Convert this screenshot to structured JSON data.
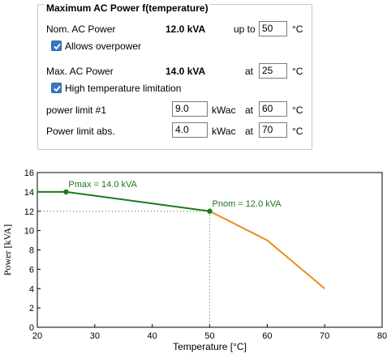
{
  "group": {
    "title": "Maximum AC Power f(temperature)",
    "nom": {
      "label": "Nom. AC Power",
      "value": "12.0 kVA",
      "qualifier": "up to",
      "temp": "50",
      "unit": "°C"
    },
    "overpower": {
      "label": "Allows overpower",
      "checked": true
    },
    "max": {
      "label": "Max. AC Power",
      "value": "14.0 kVA",
      "qualifier": "at",
      "temp": "25",
      "unit": "°C"
    },
    "hightemp": {
      "label": "High temperature limitation",
      "checked": true
    },
    "limit1": {
      "label": "power limit #1",
      "value": "9.0",
      "unit": "kWac",
      "qualifier": "at",
      "temp": "60",
      "temp_unit": "°C"
    },
    "limitabs": {
      "label": "Power limit abs.",
      "value": "4.0",
      "unit": "kWac",
      "qualifier": "at",
      "temp": "70",
      "temp_unit": "°C"
    }
  },
  "chart_data": {
    "type": "line",
    "xlabel": "Temperature [°C]",
    "ylabel": "Power [kVA]",
    "xlim": [
      20,
      80
    ],
    "ylim": [
      0,
      16
    ],
    "x_ticks": [
      "20",
      "30",
      "40",
      "50",
      "60",
      "70",
      "80"
    ],
    "y_ticks": [
      "0",
      "2",
      "4",
      "6",
      "8",
      "10",
      "12",
      "14",
      "16"
    ],
    "grid": false,
    "series": [
      {
        "color": "#1a7a1a",
        "points": [
          [
            20,
            14.0
          ],
          [
            25,
            14.0
          ],
          [
            50,
            12.0
          ]
        ]
      },
      {
        "color": "#f0891e",
        "points": [
          [
            50,
            12.0
          ],
          [
            60,
            9.0
          ],
          [
            70,
            4.0
          ]
        ]
      }
    ],
    "markers": [
      [
        25,
        14.0
      ],
      [
        50,
        12.0
      ]
    ],
    "guides": [
      [
        50,
        12.0
      ]
    ],
    "annotations": [
      {
        "text": "Pmax = 14.0 kVA",
        "x": 25,
        "y": 14.0
      },
      {
        "text": "Pnom = 12.0 kVA",
        "x": 50,
        "y": 12.0
      }
    ]
  }
}
